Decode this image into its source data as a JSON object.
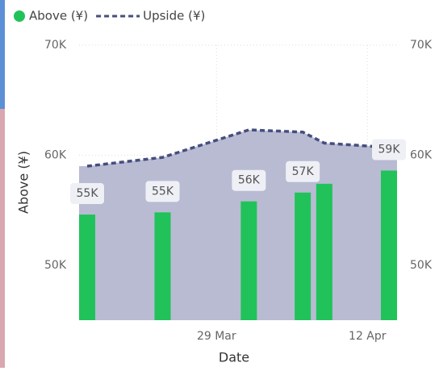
{
  "chart_data": {
    "type": "combo",
    "x_label": "Date",
    "y_label": "Above (¥)",
    "legend": "top-left",
    "grid": true,
    "x": [
      "17 Mar",
      "24 Mar",
      "1 Apr",
      "6 Apr",
      "8 Apr",
      "14 Apr"
    ],
    "xlim": [
      "17 Mar",
      "14 Apr"
    ],
    "xticks": [
      "29 Mar",
      "12 Apr"
    ],
    "ylim": [
      45000,
      70000
    ],
    "yticks": [
      {
        "value": 50000,
        "label": "50K"
      },
      {
        "value": 60000,
        "label": "60K"
      },
      {
        "value": 70000,
        "label": "70K"
      }
    ],
    "y2lim": [
      45000,
      70000
    ],
    "y2ticks": [
      {
        "value": 50000,
        "label": "50K"
      },
      {
        "value": 60000,
        "label": "60K"
      },
      {
        "value": 70000,
        "label": "70K"
      }
    ],
    "series": [
      {
        "name": "Above (¥)",
        "type": "bar",
        "color": "#21c25a",
        "values": [
          54600,
          54800,
          55800,
          56600,
          57400,
          58600
        ],
        "value_labels": [
          "55K",
          "55K",
          "56K",
          "57K",
          null,
          "59K"
        ]
      },
      {
        "name": "Upside (¥)",
        "type": "area",
        "axis": "y2",
        "color": "#464e7e",
        "fill": "#b8bbd2",
        "values": [
          59000,
          59800,
          62300,
          62100,
          61100,
          60700
        ]
      }
    ]
  }
}
